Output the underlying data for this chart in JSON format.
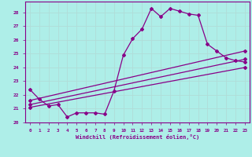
{
  "xlabel": "Windchill (Refroidissement éolien,°C)",
  "background_color": "#aeeee8",
  "grid_color": "#c8eae6",
  "line_color": "#880088",
  "xlim": [
    -0.5,
    23.5
  ],
  "ylim": [
    20.0,
    28.8
  ],
  "yticks": [
    20,
    21,
    22,
    23,
    24,
    25,
    26,
    27,
    28
  ],
  "xticks": [
    0,
    1,
    2,
    3,
    4,
    5,
    6,
    7,
    8,
    9,
    10,
    11,
    12,
    13,
    14,
    15,
    16,
    17,
    18,
    19,
    20,
    21,
    22,
    23
  ],
  "series1_x": [
    0,
    1,
    2,
    3,
    4,
    5,
    6,
    7,
    8,
    9,
    10,
    11,
    12,
    13,
    14,
    15,
    16,
    17,
    18,
    19,
    20,
    21,
    22,
    23
  ],
  "series1_y": [
    22.4,
    21.7,
    21.2,
    21.3,
    20.4,
    20.7,
    20.7,
    20.7,
    20.6,
    22.3,
    24.9,
    26.1,
    26.8,
    28.3,
    27.7,
    28.3,
    28.1,
    27.9,
    27.8,
    25.7,
    25.2,
    24.7,
    24.5,
    24.4
  ],
  "series2_x": [
    0,
    23
  ],
  "series2_y": [
    21.6,
    25.2
  ],
  "series3_x": [
    0,
    23
  ],
  "series3_y": [
    21.3,
    24.6
  ],
  "series4_x": [
    0,
    23
  ],
  "series4_y": [
    21.1,
    24.0
  ]
}
